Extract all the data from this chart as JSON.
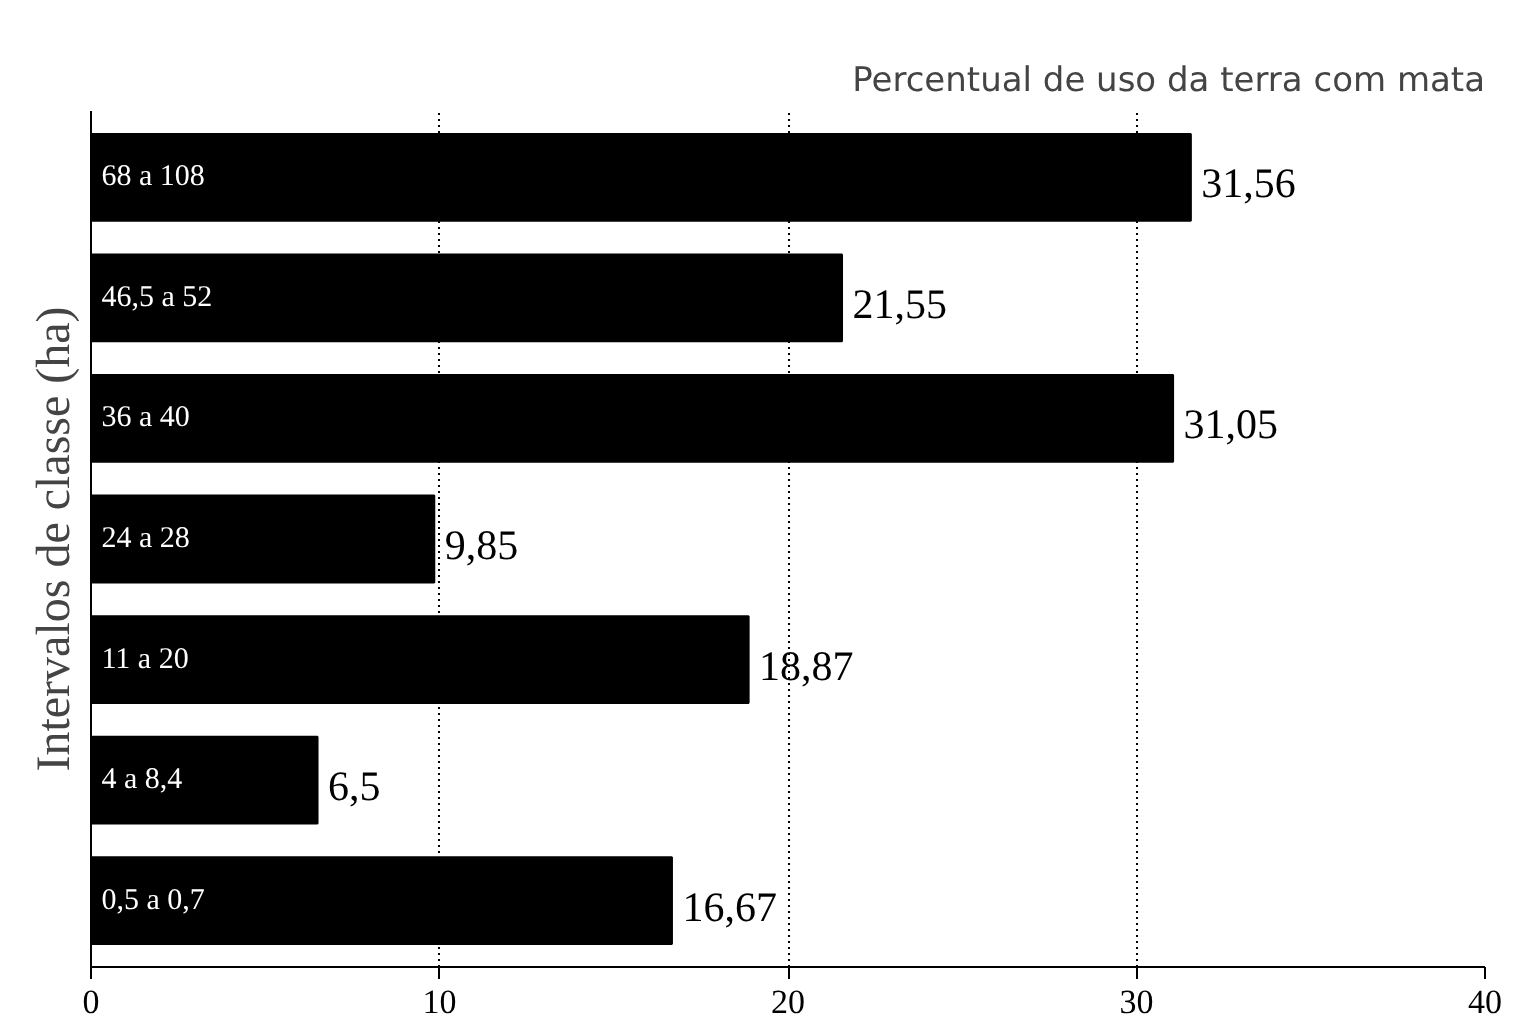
{
  "chart_data": {
    "type": "bar",
    "orientation": "horizontal",
    "title": "Percentual de uso da terra com mata",
    "ylabel": "Intervalos de classe (ha)",
    "categories": [
      "68 a 108",
      "46,5 a 52",
      "36 a 40",
      "24 a 28",
      "11 a 20",
      "4 a 8,4",
      "0,5 a 0,7"
    ],
    "values": [
      31.56,
      21.55,
      31.05,
      9.85,
      18.87,
      6.5,
      16.67
    ],
    "value_labels": [
      "31,56",
      "21,55",
      "31,05",
      "9,85",
      "18,87",
      "6,5",
      "16,67"
    ],
    "color": "#000000",
    "xlim": [
      0,
      40
    ],
    "xticks": [
      0,
      10,
      20,
      30,
      40
    ],
    "grid": "x"
  }
}
